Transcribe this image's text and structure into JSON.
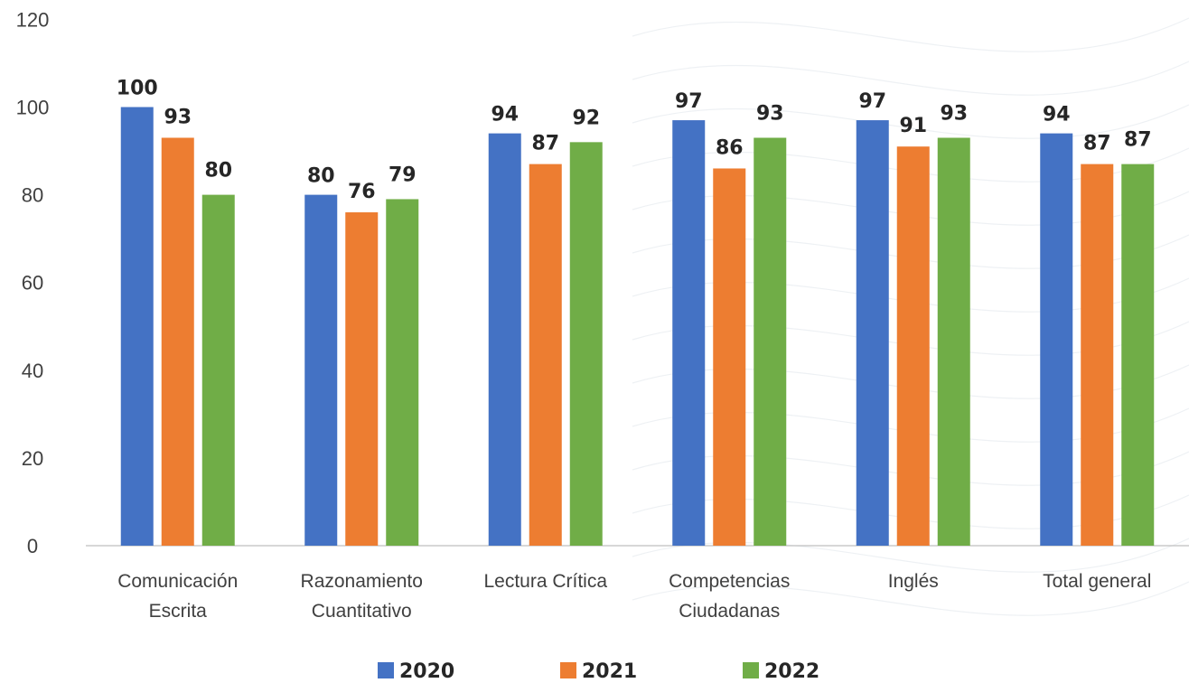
{
  "chart_data": {
    "type": "bar",
    "categories": [
      [
        "Comunicación",
        "Escrita"
      ],
      [
        "Razonamiento",
        "Cuantitativo"
      ],
      [
        "Lectura Crítica"
      ],
      [
        "Competencias",
        "Ciudadanas"
      ],
      [
        "Inglés"
      ],
      [
        "Total general"
      ]
    ],
    "series": [
      {
        "name": "2020",
        "color": "#4472C4",
        "values": [
          100,
          80,
          94,
          97,
          97,
          94
        ]
      },
      {
        "name": "2021",
        "color": "#ED7D31",
        "values": [
          93,
          76,
          87,
          86,
          91,
          87
        ]
      },
      {
        "name": "2022",
        "color": "#70AD47",
        "values": [
          80,
          79,
          92,
          93,
          93,
          87
        ]
      }
    ],
    "ylim": [
      0,
      120
    ],
    "yticks": [
      0,
      20,
      40,
      60,
      80,
      100,
      120
    ],
    "grid": false,
    "legend_position": "bottom",
    "data_labels": true
  }
}
